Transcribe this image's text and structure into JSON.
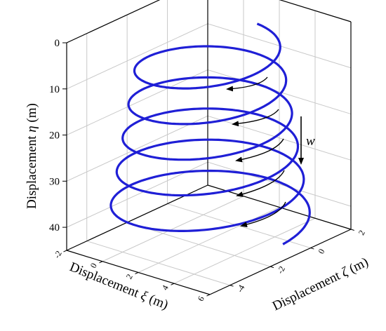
{
  "chart_data": {
    "type": "line3d",
    "title": "",
    "zlabel_text": "Displacement ",
    "zlabel_symbol": "η",
    "zlabel_unit": " (m)",
    "xlabel_text": "Displacement ",
    "xlabel_symbol": "ξ",
    "xlabel_unit": " (m)",
    "ylabel_text": "Displacement ",
    "ylabel_symbol": "ζ",
    "ylabel_unit": " (m)",
    "z_ticks": [
      0,
      10,
      20,
      30,
      40
    ],
    "x_ticks": [
      -4,
      -2,
      0,
      2
    ],
    "y_ticks": [
      -2,
      0,
      2,
      4,
      6
    ],
    "xlim": [
      -5,
      2
    ],
    "ylim": [
      -2,
      6
    ],
    "zlim": [
      0,
      45
    ],
    "grid": true,
    "color": "#1f1fd6",
    "series": [
      {
        "center_x": -1.5,
        "center_y": 2.0,
        "radius_start": 3.2,
        "radius_end": 4.6,
        "z_start": 3,
        "z_end": 41,
        "turns": 5.25
      }
    ],
    "annotation": {
      "label": "w",
      "arrows": 5
    }
  }
}
